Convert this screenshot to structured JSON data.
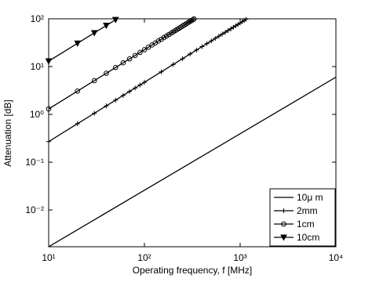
{
  "chart_data": {
    "type": "line",
    "log_x": true,
    "log_y": true,
    "xlabel": "Operating frequency, f [MHz]",
    "ylabel": "Attenuation [dB]",
    "xlim": [
      10,
      10000
    ],
    "ylim": [
      0.0017,
      100
    ],
    "xticks": [
      {
        "value": 10,
        "label": "10¹"
      },
      {
        "value": 100,
        "label": "10²"
      },
      {
        "value": 1000,
        "label": "10³"
      },
      {
        "value": 10000,
        "label": "10⁴"
      }
    ],
    "yticks": [
      {
        "value": 0.01,
        "label": "10⁻²"
      },
      {
        "value": 0.1,
        "label": "10⁻¹"
      },
      {
        "value": 1,
        "label": "10⁰"
      },
      {
        "value": 10,
        "label": "10¹"
      },
      {
        "value": 100,
        "label": "10²"
      }
    ],
    "legend": "lower right",
    "series": [
      {
        "name": "10μ m",
        "color": "#000000",
        "marker": "none",
        "x": [
          10,
          10000
        ],
        "values": [
          0.0017,
          6
        ]
      },
      {
        "name": "2mm",
        "color": "#000000",
        "marker": "plus",
        "x": [
          10,
          20,
          30,
          40,
          50,
          60,
          70,
          80,
          90,
          100,
          150,
          200,
          250,
          300,
          350,
          400,
          450,
          500,
          550,
          600,
          650,
          700,
          750,
          800,
          850,
          900,
          950,
          1000,
          1050,
          1100,
          1150
        ],
        "values": [
          0.27,
          0.638,
          1.054,
          1.506,
          1.987,
          2.49,
          3.02,
          3.56,
          4.12,
          4.69,
          7.76,
          11.09,
          14.61,
          18.31,
          22.2,
          26.2,
          30.3,
          34.5,
          38.9,
          43.3,
          47.8,
          52.4,
          57.1,
          61.8,
          66.7,
          71.6,
          76.5,
          81.5,
          86.7,
          91.7,
          97.0
        ]
      },
      {
        "name": "1cm",
        "color": "#000000",
        "marker": "circle",
        "x": [
          10,
          20,
          30,
          40,
          50,
          60,
          70,
          80,
          90,
          100,
          110,
          120,
          130,
          140,
          150,
          160,
          170,
          180,
          190,
          200,
          210,
          220,
          230,
          240,
          250,
          260,
          270,
          280,
          290,
          300,
          310,
          320,
          330
        ],
        "values": [
          1.3,
          3.07,
          5.08,
          7.25,
          9.57,
          11.99,
          14.5,
          17.1,
          19.8,
          22.6,
          25.4,
          28.3,
          31.3,
          34.3,
          37.3,
          40.5,
          43.6,
          46.8,
          50.1,
          53.4,
          56.7,
          60.1,
          63.5,
          66.9,
          70.4,
          73.9,
          77.4,
          81.0,
          84.6,
          88.2,
          91.9,
          95.6,
          99.3
        ]
      },
      {
        "name": "10cm",
        "color": "#000000",
        "marker": "triangle",
        "x": [
          10,
          20,
          30,
          40,
          50
        ],
        "values": [
          13,
          30.7,
          50.8,
          72.5,
          95.7
        ]
      }
    ]
  }
}
